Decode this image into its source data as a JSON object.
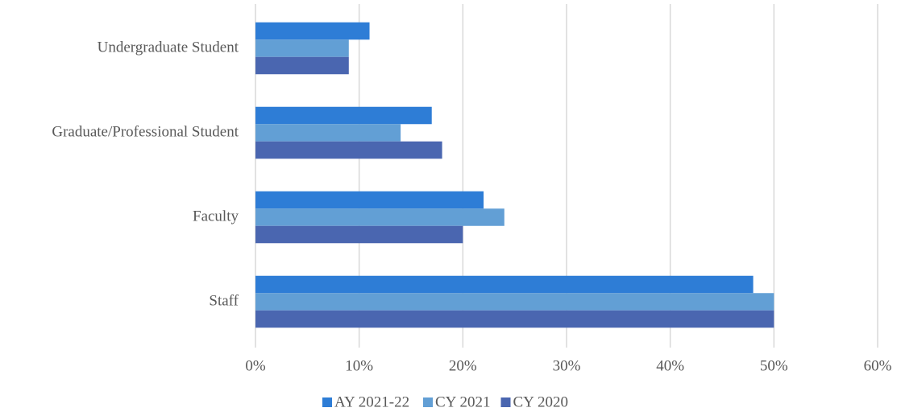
{
  "chart_data": {
    "type": "hbar",
    "categories": [
      "Undergraduate Student",
      "Graduate/Professional Student",
      "Faculty",
      "Staff"
    ],
    "series": [
      {
        "name": "AY 2021-22",
        "color": "#2e7dd6",
        "values": [
          11,
          17,
          22,
          48
        ]
      },
      {
        "name": "CY 2021",
        "color": "#629fd5",
        "values": [
          9,
          14,
          24,
          50
        ]
      },
      {
        "name": "CY 2020",
        "color": "#4a66b0",
        "values": [
          9,
          18,
          20,
          50
        ]
      }
    ],
    "xlim": [
      0,
      60
    ],
    "xticks": [
      {
        "value": 0,
        "label": "0%"
      },
      {
        "value": 10,
        "label": "10%"
      },
      {
        "value": 20,
        "label": "20%"
      },
      {
        "value": 30,
        "label": "30%"
      },
      {
        "value": 40,
        "label": "40%"
      },
      {
        "value": 50,
        "label": "50%"
      },
      {
        "value": 60,
        "label": "60%"
      }
    ],
    "grid": true,
    "legend": "bottom"
  }
}
